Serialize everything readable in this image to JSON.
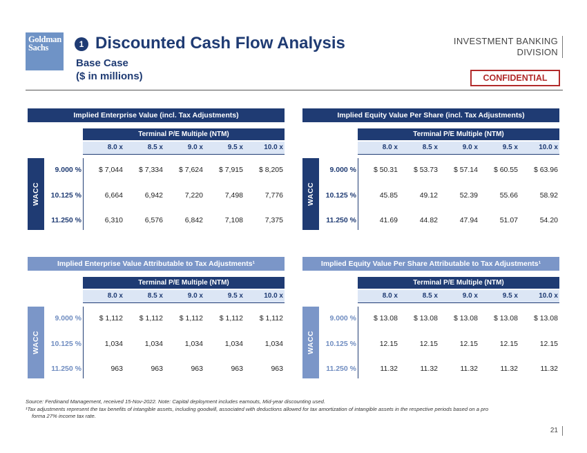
{
  "logo": {
    "line1": "Goldman",
    "line2": "Sachs"
  },
  "header": {
    "section_number": "1",
    "title": "Discounted Cash Flow Analysis",
    "subtitle_line1": "Base Case",
    "subtitle_line2": "($ in millions)",
    "division_line1": "INVESTMENT BANKING",
    "division_line2": "DIVISION",
    "confidential": "CONFIDENTIAL"
  },
  "panels": [
    {
      "title": "Implied Enterprise Value (incl. Tax Adjustments)",
      "multiple_label": "Terminal P/E Multiple (NTM)",
      "multiples": [
        "8.0 x",
        "8.5 x",
        "9.0 x",
        "9.5 x",
        "10.0 x"
      ],
      "wacc_label": "WACC",
      "rows": [
        {
          "label": "9.000 %",
          "values": [
            "$ 7,044",
            "$ 7,334",
            "$ 7,624",
            "$ 7,915",
            "$ 8,205"
          ]
        },
        {
          "label": "10.125 %",
          "values": [
            "6,664",
            "6,942",
            "7,220",
            "7,498",
            "7,776"
          ]
        },
        {
          "label": "11.250 %",
          "values": [
            "6,310",
            "6,576",
            "6,842",
            "7,108",
            "7,375"
          ]
        }
      ]
    },
    {
      "title": "Implied Equity Value Per Share (incl. Tax Adjustments)",
      "multiple_label": "Terminal P/E Multiple (NTM)",
      "multiples": [
        "8.0 x",
        "8.5 x",
        "9.0 x",
        "9.5 x",
        "10.0 x"
      ],
      "wacc_label": "WACC",
      "rows": [
        {
          "label": "9.000 %",
          "values": [
            "$ 50.31",
            "$ 53.73",
            "$ 57.14",
            "$ 60.55",
            "$ 63.96"
          ]
        },
        {
          "label": "10.125 %",
          "values": [
            "45.85",
            "49.12",
            "52.39",
            "55.66",
            "58.92"
          ]
        },
        {
          "label": "11.250 %",
          "values": [
            "41.69",
            "44.82",
            "47.94",
            "51.07",
            "54.20"
          ]
        }
      ]
    },
    {
      "title": "Implied Enterprise Value Attributable to Tax Adjustments¹",
      "multiple_label": "Terminal P/E Multiple (NTM)",
      "multiples": [
        "8.0 x",
        "8.5 x",
        "9.0 x",
        "9.5 x",
        "10.0 x"
      ],
      "wacc_label": "WACC",
      "rows": [
        {
          "label": "9.000 %",
          "values": [
            "$ 1,112",
            "$ 1,112",
            "$ 1,112",
            "$ 1,112",
            "$ 1,112"
          ]
        },
        {
          "label": "10.125 %",
          "values": [
            "1,034",
            "1,034",
            "1,034",
            "1,034",
            "1,034"
          ]
        },
        {
          "label": "11.250 %",
          "values": [
            "963",
            "963",
            "963",
            "963",
            "963"
          ]
        }
      ]
    },
    {
      "title": "Implied Equity Value Per Share Attributable to Tax Adjustments¹",
      "multiple_label": "Terminal P/E Multiple (NTM)",
      "multiples": [
        "8.0 x",
        "8.5 x",
        "9.0 x",
        "9.5 x",
        "10.0 x"
      ],
      "wacc_label": "WACC",
      "rows": [
        {
          "label": "9.000 %",
          "values": [
            "$ 13.08",
            "$ 13.08",
            "$ 13.08",
            "$ 13.08",
            "$ 13.08"
          ]
        },
        {
          "label": "10.125 %",
          "values": [
            "12.15",
            "12.15",
            "12.15",
            "12.15",
            "12.15"
          ]
        },
        {
          "label": "11.250 %",
          "values": [
            "11.32",
            "11.32",
            "11.32",
            "11.32",
            "11.32"
          ]
        }
      ]
    }
  ],
  "footnotes": {
    "source": "Source: Ferdinand Management, received 15-Nov-2022. Note: Capital deployment includes earnouts, Mid-year discounting used.",
    "note1_line1": "¹Tax adjustments represent the tax benefits of intangible assets, including goodwill, associated with deductions allowed for tax amortization of intangible assets in the respective periods based on a pro",
    "note1_line2": "forma 27% income tax rate."
  },
  "page_number": "21",
  "colors": {
    "navy": "#1f3b73",
    "light_blue": "#7b96c8",
    "confidential_red": "#b22a2a"
  }
}
